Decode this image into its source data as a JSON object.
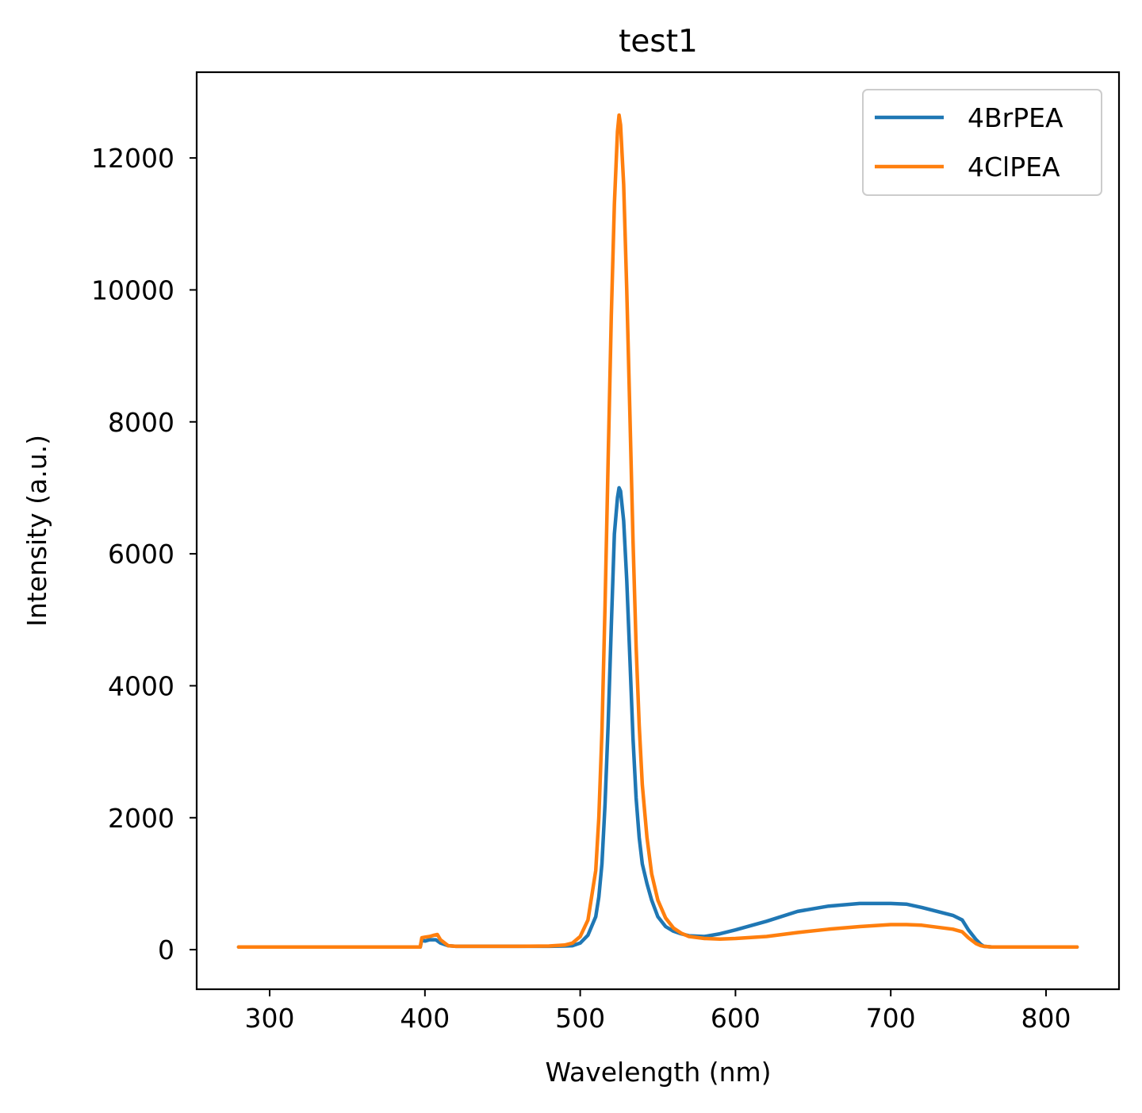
{
  "chart_data": {
    "type": "line",
    "title": "test1",
    "xlabel": "Wavelength (nm)",
    "ylabel": "Intensity (a.u.)",
    "xlim": [
      253,
      847
    ],
    "ylim": [
      -600,
      13300
    ],
    "xticks": [
      300,
      400,
      500,
      600,
      700,
      800
    ],
    "yticks": [
      0,
      2000,
      4000,
      6000,
      8000,
      10000,
      12000
    ],
    "grid": false,
    "legend_position": "top-right",
    "series": [
      {
        "name": "4BrPEA",
        "color": "#1f77b4",
        "x": [
          280,
          320,
          360,
          397,
          398,
          400,
          403,
          407,
          410,
          415,
          420,
          440,
          460,
          480,
          490,
          495,
          500,
          505,
          510,
          512,
          514,
          516,
          518,
          520,
          522,
          524,
          525,
          526,
          528,
          530,
          532,
          534,
          536,
          538,
          540,
          543,
          546,
          550,
          555,
          560,
          565,
          570,
          580,
          590,
          600,
          620,
          640,
          660,
          680,
          700,
          710,
          720,
          740,
          746,
          750,
          755,
          758,
          760,
          765,
          780,
          800,
          820
        ],
        "y": [
          40,
          40,
          40,
          40,
          150,
          130,
          150,
          150,
          100,
          60,
          50,
          50,
          50,
          50,
          55,
          60,
          100,
          220,
          500,
          800,
          1300,
          2200,
          3400,
          4900,
          6300,
          6850,
          7000,
          6950,
          6500,
          5600,
          4400,
          3200,
          2300,
          1700,
          1300,
          1000,
          750,
          500,
          350,
          280,
          240,
          210,
          200,
          240,
          300,
          430,
          580,
          660,
          700,
          700,
          690,
          640,
          520,
          450,
          300,
          150,
          80,
          50,
          40,
          40,
          40,
          40
        ]
      },
      {
        "name": "4ClPEA",
        "color": "#ff7f0e",
        "x": [
          280,
          320,
          360,
          397,
          398,
          400,
          403,
          406,
          408,
          410,
          415,
          420,
          440,
          460,
          480,
          490,
          495,
          500,
          505,
          510,
          512,
          514,
          516,
          518,
          520,
          522,
          524,
          525,
          526,
          528,
          530,
          532,
          534,
          536,
          538,
          540,
          543,
          546,
          550,
          555,
          560,
          565,
          570,
          580,
          590,
          600,
          620,
          640,
          660,
          680,
          700,
          710,
          720,
          740,
          746,
          750,
          755,
          758,
          760,
          765,
          780,
          800,
          820
        ],
        "y": [
          40,
          40,
          40,
          40,
          180,
          190,
          200,
          220,
          230,
          150,
          60,
          50,
          50,
          50,
          55,
          70,
          100,
          200,
          450,
          1200,
          2000,
          3300,
          5200,
          7400,
          9600,
          11300,
          12400,
          12650,
          12500,
          11600,
          10000,
          8100,
          6200,
          4600,
          3400,
          2500,
          1700,
          1150,
          750,
          480,
          330,
          250,
          200,
          170,
          160,
          170,
          200,
          260,
          310,
          350,
          380,
          380,
          370,
          310,
          270,
          180,
          90,
          60,
          50,
          40,
          40,
          40,
          40
        ]
      }
    ]
  }
}
